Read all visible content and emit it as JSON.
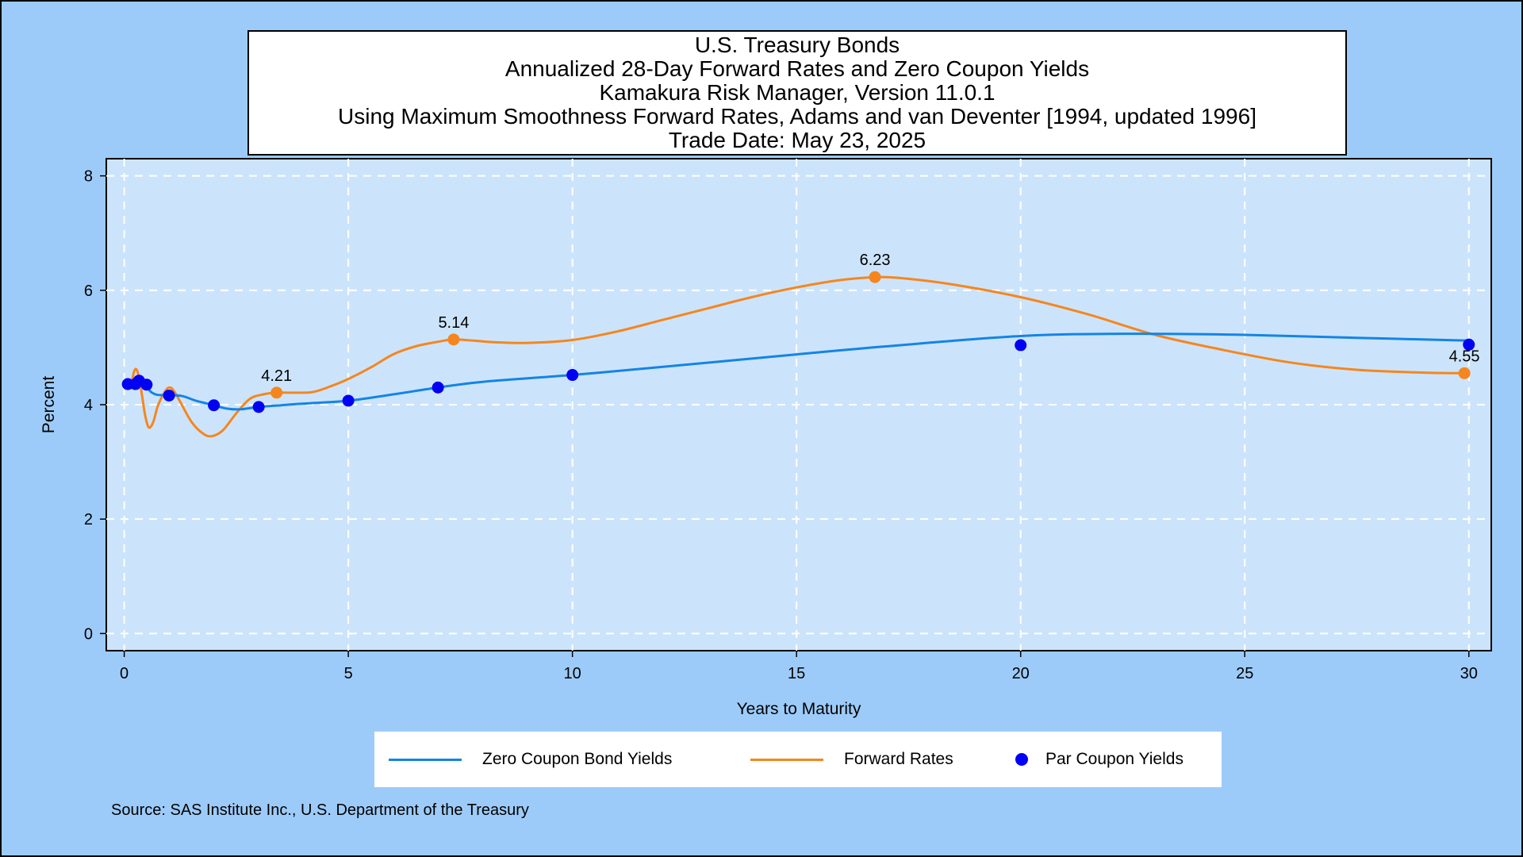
{
  "title_lines": [
    "U.S. Treasury Bonds",
    "Annualized 28-Day Forward Rates and Zero Coupon Yields",
    "Kamakura Risk Manager, Version 11.0.1",
    "Using Maximum Smoothness Forward Rates, Adams and van Deventer [1994, updated 1996]",
    "Trade Date: May 23, 2025"
  ],
  "source": "Source: SAS Institute Inc., U.S. Department of the Treasury",
  "colors": {
    "background": "#9dcbf9",
    "plot_area": "#cce4fb",
    "zero_coupon": "#1484e6",
    "forward": "#f5861f",
    "par": "#0000f5"
  },
  "chart_data": {
    "type": "line",
    "xlabel": "Years to Maturity",
    "ylabel": "Percent",
    "xlim": [
      -0.4,
      30.5
    ],
    "ylim": [
      -0.3,
      8.3
    ],
    "xticks": [
      0,
      5,
      10,
      15,
      20,
      25,
      30
    ],
    "yticks": [
      0,
      2,
      4,
      6,
      8
    ],
    "grid": true,
    "legend_position": "bottom",
    "series": [
      {
        "name": "Zero Coupon Bond Yields",
        "style": "line",
        "color": "#1484e6",
        "x": [
          0.0,
          0.08,
          0.17,
          0.25,
          0.33,
          0.42,
          0.5,
          0.6,
          0.75,
          1.0,
          1.3,
          1.6,
          2.0,
          2.3,
          2.6,
          3.0,
          3.5,
          4.0,
          5.0,
          6.0,
          7.0,
          8.0,
          10.0,
          12.0,
          15.0,
          17.0,
          20.0,
          22.5,
          25.0,
          27.5,
          30.0
        ],
        "y": [
          4.36,
          4.37,
          4.38,
          4.4,
          4.41,
          4.38,
          4.32,
          4.22,
          4.17,
          4.17,
          4.15,
          4.07,
          3.99,
          3.93,
          3.92,
          3.96,
          3.99,
          4.02,
          4.07,
          4.18,
          4.3,
          4.4,
          4.52,
          4.66,
          4.88,
          5.02,
          5.2,
          5.24,
          5.22,
          5.17,
          5.12
        ]
      },
      {
        "name": "Forward Rates",
        "style": "line",
        "color": "#f5861f",
        "x": [
          0.0,
          0.08,
          0.17,
          0.22,
          0.27,
          0.33,
          0.4,
          0.47,
          0.55,
          0.65,
          0.75,
          0.9,
          1.0,
          1.1,
          1.25,
          1.5,
          1.75,
          1.95,
          2.2,
          2.5,
          2.8,
          3.1,
          3.4,
          3.8,
          4.2,
          4.6,
          5.0,
          5.5,
          6.0,
          6.5,
          7.0,
          7.35,
          7.8,
          8.3,
          9.0,
          10.0,
          11.0,
          12.0,
          13.0,
          14.0,
          15.0,
          16.0,
          16.8,
          17.5,
          18.5,
          20.0,
          21.5,
          23.0,
          24.5,
          26.0,
          27.5,
          29.0,
          30.0
        ],
        "y": [
          4.33,
          4.35,
          4.42,
          4.58,
          4.62,
          4.48,
          4.15,
          3.8,
          3.6,
          3.7,
          3.98,
          4.22,
          4.3,
          4.25,
          4.05,
          3.7,
          3.5,
          3.45,
          3.55,
          3.85,
          4.1,
          4.18,
          4.21,
          4.21,
          4.22,
          4.32,
          4.45,
          4.65,
          4.88,
          5.02,
          5.1,
          5.14,
          5.12,
          5.09,
          5.08,
          5.13,
          5.28,
          5.48,
          5.68,
          5.88,
          6.05,
          6.18,
          6.23,
          6.2,
          6.1,
          5.88,
          5.58,
          5.22,
          4.96,
          4.74,
          4.61,
          4.56,
          4.55
        ]
      },
      {
        "name": "Par Coupon Yields",
        "style": "markers",
        "color": "#0000f5",
        "x": [
          0.08,
          0.25,
          0.33,
          0.5,
          1.0,
          2.0,
          3.0,
          5.0,
          7.0,
          10.0,
          20.0,
          30.0
        ],
        "y": [
          4.36,
          4.36,
          4.42,
          4.35,
          4.16,
          3.99,
          3.96,
          4.07,
          4.3,
          4.52,
          5.04,
          5.05
        ]
      }
    ],
    "annotations": [
      {
        "series": "Forward Rates",
        "x": 3.4,
        "y": 4.21,
        "label": "4.21"
      },
      {
        "series": "Forward Rates",
        "x": 7.35,
        "y": 5.14,
        "label": "5.14"
      },
      {
        "series": "Forward Rates",
        "x": 16.75,
        "y": 6.23,
        "label": "6.23"
      },
      {
        "series": "Forward Rates",
        "x": 29.9,
        "y": 4.55,
        "label": "4.55"
      }
    ]
  }
}
